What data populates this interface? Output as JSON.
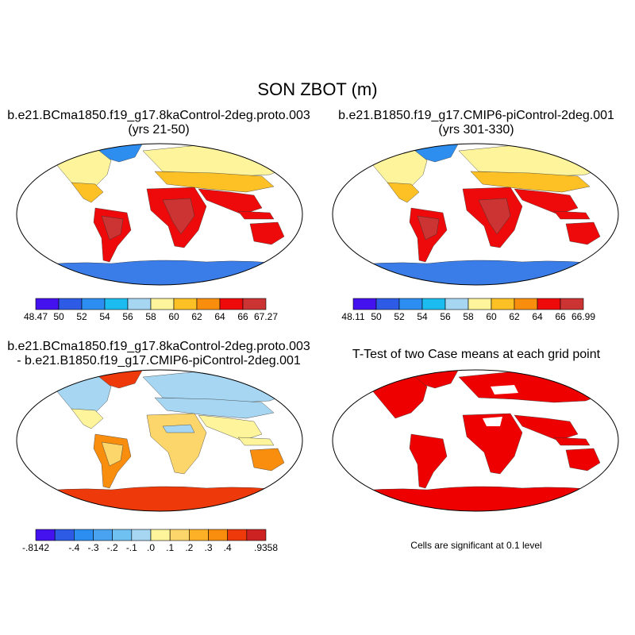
{
  "title": "SON ZBOT (m)",
  "panels": [
    {
      "title_line1": "b.e21.BCma1850.f19_g17.8kaControl-2deg.proto.003",
      "title_line2": "(yrs 21-50)",
      "colorbar": {
        "colors": [
          "#4412ee",
          "#2e5be5",
          "#2c8ef0",
          "#1dbcf0",
          "#a6d6f2",
          "#fdf49b",
          "#fdc126",
          "#f98e0e",
          "#ee0a0a",
          "#cc3333"
        ],
        "labels": [
          "48.47",
          "50",
          "52",
          "54",
          "56",
          "58",
          "60",
          "62",
          "64",
          "66",
          "67.27"
        ]
      }
    },
    {
      "title_line1": "b.e21.B1850.f19_g17.CMIP6-piControl-2deg.001",
      "title_line2": "(yrs 301-330)",
      "colorbar": {
        "colors": [
          "#4412ee",
          "#2e5be5",
          "#2c8ef0",
          "#1dbcf0",
          "#a6d6f2",
          "#fdf49b",
          "#fdc126",
          "#f98e0e",
          "#ee0a0a",
          "#cc3333"
        ],
        "labels": [
          "48.11",
          "50",
          "52",
          "54",
          "56",
          "58",
          "60",
          "62",
          "64",
          "66",
          "66.99"
        ]
      }
    },
    {
      "title_line1": "b.e21.BCma1850.f19_g17.8kaControl-2deg.proto.003",
      "title_line2": "- b.e21.B1850.f19_g17.CMIP6-piControl-2deg.001",
      "colorbar": {
        "colors": [
          "#4412ee",
          "#2e5be5",
          "#2c8ef0",
          "#4aa3f0",
          "#6fc1f2",
          "#a6d6f2",
          "#fdf49b",
          "#fdd66b",
          "#fdb126",
          "#f98e0e",
          "#ee3a0a",
          "#cc2222"
        ],
        "labels": [
          "-.8142",
          "",
          "-.4",
          "-.3",
          "-.2",
          "-.1",
          ".0",
          ".1",
          ".2",
          ".3",
          ".4",
          "",
          ".9358"
        ]
      }
    },
    {
      "title_line1": "T-Test of two Case means at each grid point",
      "title_line2": "",
      "note": "Cells are significant at 0.1 level"
    }
  ],
  "map_colors": {
    "antarctica": "#3b7de8",
    "greenland": "#2e8ef0",
    "arctic_fringe": "#a6d6f2",
    "north_lands": "#fdf49b",
    "midlat_lands": "#fdc126",
    "subtropical_lands": "#f98e0e",
    "tropical_lands": "#ee0a0a",
    "deep_tropics": "#cc3333",
    "diff_antarctica": "#ee3a0a",
    "diff_north": "#a6d6f2",
    "diff_midlat": "#fdf49b",
    "diff_south": "#f98e0e",
    "diff_tropical": "#fdd66b",
    "ttest": "#ee0000"
  }
}
